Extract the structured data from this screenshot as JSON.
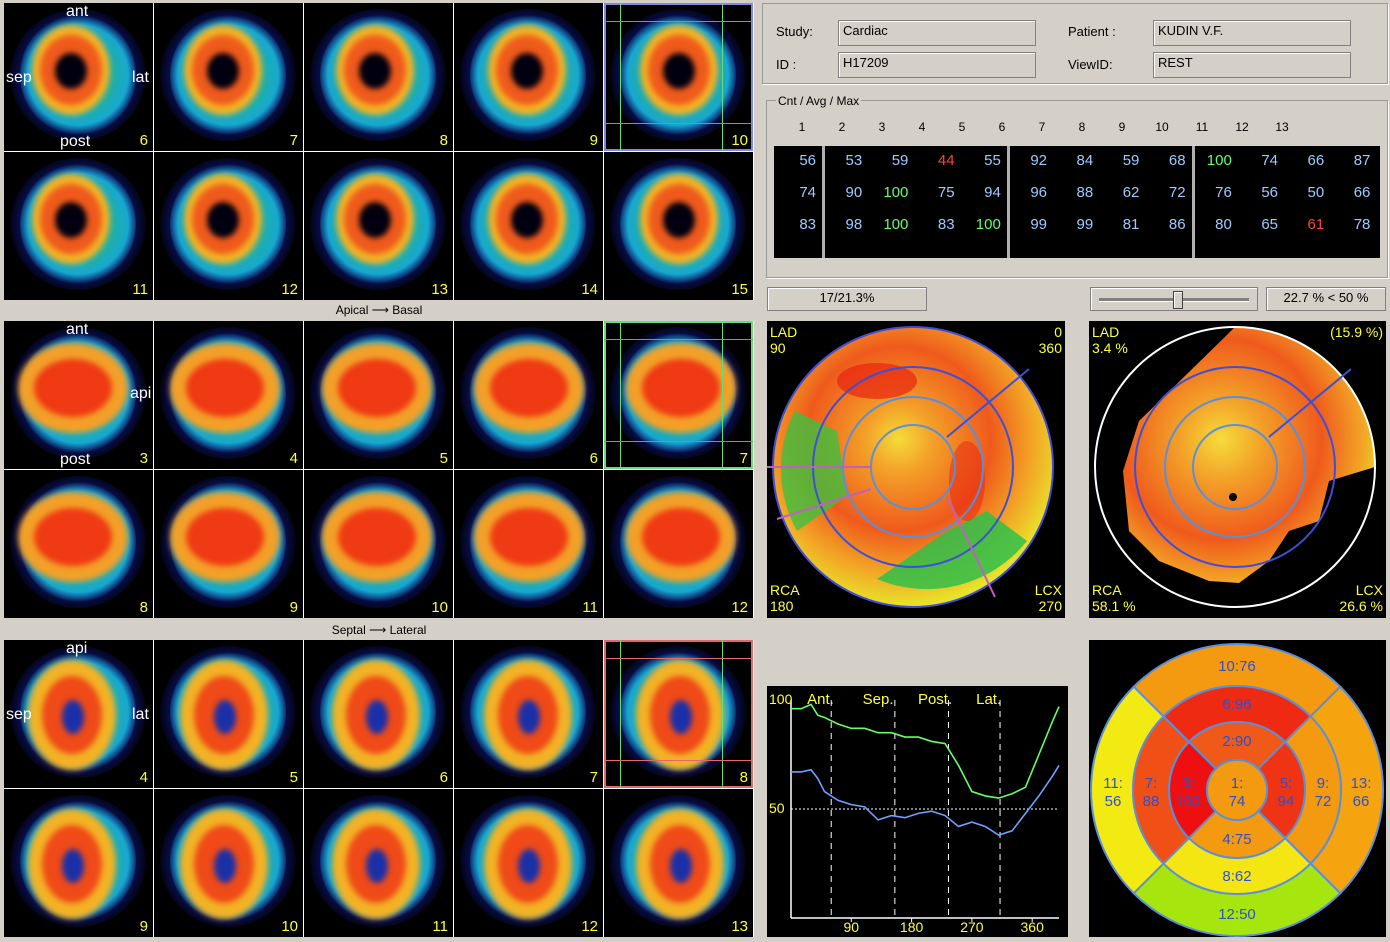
{
  "short_axis": {
    "caption": "Apical ⟶ Basal",
    "orientation": {
      "top": "ant",
      "left": "sep",
      "right": "lat",
      "bottom": "post"
    },
    "slices": [
      "6",
      "7",
      "8",
      "9",
      "10",
      "11",
      "12",
      "13",
      "14",
      "15"
    ]
  },
  "vertical_long_axis": {
    "caption": "Septal ⟶ Lateral",
    "orientation": {
      "top": "ant",
      "right": "api",
      "bottom": "post"
    },
    "slices": [
      "3",
      "4",
      "5",
      "6",
      "7",
      "8",
      "9",
      "10",
      "11",
      "12"
    ]
  },
  "horizontal_long_axis": {
    "orientation": {
      "top": "api",
      "left": "sep",
      "right": "lat"
    },
    "slices": [
      "4",
      "5",
      "6",
      "7",
      "8",
      "9",
      "10",
      "11",
      "12",
      "13"
    ]
  },
  "info": {
    "study_label": "Study:",
    "study": "Cardiac",
    "id_label": "ID :",
    "id": "H17209",
    "patient_label": "Patient :",
    "patient": "KUDIN V.F.",
    "viewid_label": "ViewID:",
    "viewid": "REST"
  },
  "stats": {
    "group_label": "Cnt / Avg / Max",
    "columns": [
      "1",
      "2",
      "3",
      "4",
      "5",
      "6",
      "7",
      "8",
      "9",
      "10",
      "11",
      "12",
      "13"
    ],
    "rows": [
      [
        {
          "v": "56",
          "c": "#9ecbff"
        },
        {
          "v": "53",
          "c": "#9ecbff"
        },
        {
          "v": "59",
          "c": "#9ecbff"
        },
        {
          "v": "44",
          "c": "#ff4040"
        },
        {
          "v": "55",
          "c": "#9ecbff"
        },
        {
          "v": "92",
          "c": "#9ecbff"
        },
        {
          "v": "84",
          "c": "#9ecbff"
        },
        {
          "v": "59",
          "c": "#9ecbff"
        },
        {
          "v": "68",
          "c": "#9ecbff"
        },
        {
          "v": "100",
          "c": "#66ff66"
        },
        {
          "v": "74",
          "c": "#9ecbff"
        },
        {
          "v": "66",
          "c": "#9ecbff"
        },
        {
          "v": "87",
          "c": "#9ecbff"
        }
      ],
      [
        {
          "v": "74",
          "c": "#9ecbff"
        },
        {
          "v": "90",
          "c": "#9ecbff"
        },
        {
          "v": "100",
          "c": "#66ff66"
        },
        {
          "v": "75",
          "c": "#9ecbff"
        },
        {
          "v": "94",
          "c": "#9ecbff"
        },
        {
          "v": "96",
          "c": "#9ecbff"
        },
        {
          "v": "88",
          "c": "#9ecbff"
        },
        {
          "v": "62",
          "c": "#9ecbff"
        },
        {
          "v": "72",
          "c": "#9ecbff"
        },
        {
          "v": "76",
          "c": "#9ecbff"
        },
        {
          "v": "56",
          "c": "#9ecbff"
        },
        {
          "v": "50",
          "c": "#9ecbff"
        },
        {
          "v": "66",
          "c": "#9ecbff"
        }
      ],
      [
        {
          "v": "83",
          "c": "#9ecbff"
        },
        {
          "v": "98",
          "c": "#9ecbff"
        },
        {
          "v": "100",
          "c": "#66ff66"
        },
        {
          "v": "83",
          "c": "#9ecbff"
        },
        {
          "v": "100",
          "c": "#66ff66"
        },
        {
          "v": "99",
          "c": "#9ecbff"
        },
        {
          "v": "99",
          "c": "#9ecbff"
        },
        {
          "v": "81",
          "c": "#9ecbff"
        },
        {
          "v": "86",
          "c": "#9ecbff"
        },
        {
          "v": "80",
          "c": "#9ecbff"
        },
        {
          "v": "65",
          "c": "#9ecbff"
        },
        {
          "v": "61",
          "c": "#ff4040"
        },
        {
          "v": "78",
          "c": "#9ecbff"
        }
      ]
    ]
  },
  "status": {
    "left": "17/21.3%",
    "right": "22.7 % < 50 %",
    "slider_value": 0.52
  },
  "polar_map": {
    "tl": "LAD",
    "tl2": "90",
    "tr": "0",
    "tr2": "360",
    "bl": "RCA",
    "bl2": "180",
    "br": "LCX",
    "br2": "270"
  },
  "defect_map": {
    "tl": "LAD",
    "tl2": "3.4 %",
    "tr": "(15.9 %)",
    "bl": "RCA",
    "bl2": "58.1 %",
    "br": "LCX",
    "br2": "26.6 %"
  },
  "segments": {
    "outer": [
      {
        "t": "10:76",
        "c": "#f39a10"
      },
      {
        "t": "9:\n72",
        "c": "#f39a10"
      },
      {
        "t": "13:\n66",
        "c": "#f5a30e"
      },
      {
        "t": "12:50",
        "c": "#a6e60e"
      },
      {
        "t": "11:\n56",
        "c": "#f2ea12"
      }
    ],
    "mid": [
      {
        "t": "6:96",
        "c": "#ee2a12"
      },
      {
        "t": "5:\n94",
        "c": "#ee3414"
      },
      {
        "t": "8:62",
        "c": "#f3e612"
      },
      {
        "t": "7:\n88",
        "c": "#f05016"
      }
    ],
    "inner": [
      {
        "t": "2:90",
        "c": "#ef5a18"
      },
      {
        "t": "5:\n94",
        "c": "#ee3414"
      },
      {
        "t": "4:75",
        "c": "#f39a10"
      },
      {
        "t": "3:\n100",
        "c": "#ee1010"
      }
    ],
    "apex": {
      "t": "1:\n74",
      "c": "#f39a10"
    }
  },
  "chart_data": {
    "type": "line",
    "y_ticks": [
      "100",
      "50"
    ],
    "x_ticks": [
      "90",
      "180",
      "270",
      "360"
    ],
    "section_labels": [
      "Ant.",
      "Sep.",
      "Post.",
      "Lat."
    ],
    "threshold": 50,
    "ylim": [
      0,
      100
    ],
    "xlim": [
      0,
      400
    ],
    "series": [
      {
        "color": "#66ff66",
        "x": [
          0,
          15,
          30,
          40,
          50,
          70,
          90,
          110,
          130,
          150,
          170,
          190,
          210,
          230,
          250,
          270,
          290,
          310,
          330,
          350,
          370,
          390,
          400
        ],
        "y": [
          96,
          96,
          98,
          93,
          92,
          89,
          87,
          87,
          85,
          85,
          83,
          83,
          81,
          80,
          70,
          58,
          56,
          55,
          57,
          60,
          75,
          90,
          97
        ]
      },
      {
        "color": "#6fa0ff",
        "x": [
          0,
          15,
          30,
          40,
          50,
          70,
          90,
          110,
          130,
          150,
          170,
          190,
          210,
          230,
          250,
          270,
          290,
          310,
          330,
          350,
          370,
          390,
          400
        ],
        "y": [
          67,
          67,
          68,
          64,
          58,
          54,
          52,
          51,
          45,
          47,
          46,
          48,
          49,
          47,
          42,
          44,
          42,
          38,
          40,
          48,
          56,
          65,
          70
        ]
      }
    ]
  }
}
